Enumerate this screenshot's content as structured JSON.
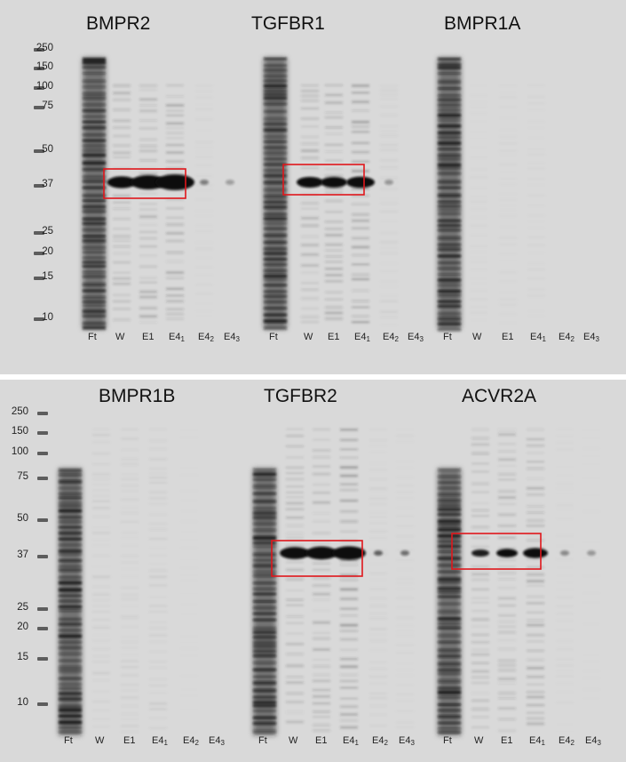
{
  "ladder": [
    "250",
    "150",
    "100",
    "75",
    "50",
    "37",
    "25",
    "20",
    "15",
    "10"
  ],
  "lanes": [
    {
      "main": "Ft",
      "sub": ""
    },
    {
      "main": "W",
      "sub": ""
    },
    {
      "main": "E1",
      "sub": ""
    },
    {
      "main": "E4",
      "sub": "1"
    },
    {
      "main": "E4",
      "sub": "2"
    },
    {
      "main": "E4",
      "sub": "3"
    }
  ],
  "gels": {
    "top": [
      "BMPR2",
      "TGFBR1",
      "BMPR1A"
    ],
    "bottom": [
      "BMPR1B",
      "TGFBR2",
      "ACVR2A"
    ]
  },
  "colors": {
    "gel_background": "#d9d9d9",
    "protein_band": "#0d0d0d",
    "highlight_box": "#e0161b",
    "panel_separator": "#ffffff"
  }
}
